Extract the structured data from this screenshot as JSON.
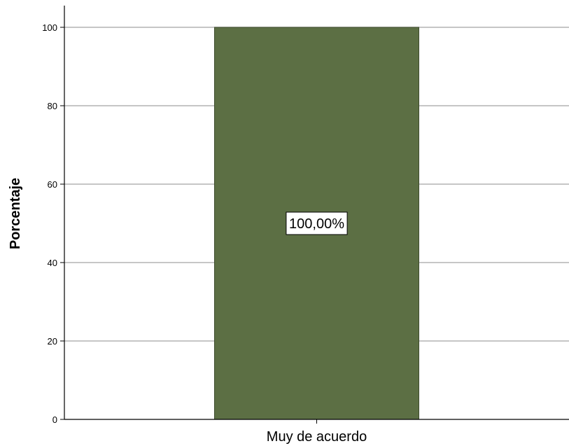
{
  "chart_data": {
    "type": "bar",
    "categories": [
      "Muy de acuerdo"
    ],
    "values": [
      100
    ],
    "data_labels": [
      "100,00%"
    ],
    "ylabel": "Porcentaje",
    "xlabel": "",
    "ylim": [
      0,
      100
    ],
    "yticks": [
      0,
      20,
      40,
      60,
      80,
      100
    ],
    "grid": true,
    "bar_color": "#5c6f44",
    "grid_color": "#b3b3b3"
  }
}
